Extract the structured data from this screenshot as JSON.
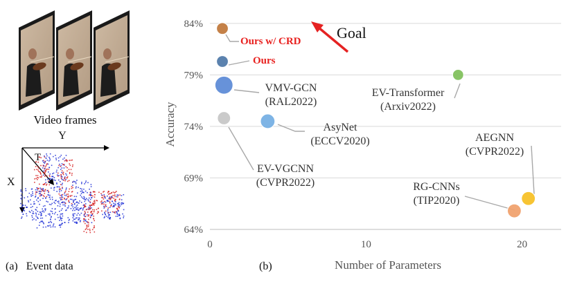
{
  "left_panel": {
    "video_frames_caption": "Video frames",
    "axis_y_label": "Y",
    "axis_t_label": "T",
    "axis_x_label": "X",
    "subfigure_a_caption": "(a)   Event data",
    "event_colors": {
      "positive": "#d62020",
      "negative": "#1f2fd6"
    }
  },
  "subfigure_b_caption": "(b)",
  "chart_data": {
    "type": "scatter",
    "title": "",
    "xlabel": "Number of Parameters",
    "ylabel": "Accuracy",
    "xlim": [
      0,
      22.5
    ],
    "ylim": [
      64,
      86
    ],
    "xticks": [
      0,
      10,
      20
    ],
    "yticks": [
      {
        "value": 64,
        "label": "64%"
      },
      {
        "value": 69,
        "label": "69%"
      },
      {
        "value": 74,
        "label": "74%"
      },
      {
        "value": 79,
        "label": "79%"
      },
      {
        "value": 84,
        "label": "84%"
      }
    ],
    "grid": "horizontal",
    "goal_label": "Goal",
    "points": [
      {
        "id": "ours-crd",
        "line1": "Ours w/ CRD",
        "line2": "",
        "x": 0.8,
        "y": 83.5,
        "size": 8.5,
        "color": "#c0773a",
        "label_color": "#e8201e",
        "bold": true
      },
      {
        "id": "ours",
        "line1": "Ours",
        "line2": "",
        "x": 0.8,
        "y": 80.3,
        "size": 8.5,
        "color": "#4f79a8",
        "label_color": "#e8201e",
        "bold": true
      },
      {
        "id": "vmv-gcn",
        "line1": "VMV-GCN",
        "line2": "(RAL2022)",
        "x": 0.9,
        "y": 78.0,
        "size": 13,
        "color": "#5b8ad6",
        "label_color": "#333333",
        "bold": false
      },
      {
        "id": "ev-vgcnn",
        "line1": "EV-VGCNN",
        "line2": "(CVPR2022)",
        "x": 0.9,
        "y": 74.8,
        "size": 9.5,
        "color": "#c6c6c6",
        "label_color": "#333333",
        "bold": false
      },
      {
        "id": "asynet",
        "line1": "AsyNet",
        "line2": "(ECCV2020)",
        "x": 3.7,
        "y": 74.5,
        "size": 10.5,
        "color": "#74aee3",
        "label_color": "#333333",
        "bold": false
      },
      {
        "id": "ev-transformer",
        "line1": "EV-Transformer",
        "line2": "(Arxiv2022)",
        "x": 15.9,
        "y": 79.0,
        "size": 8,
        "color": "#7fbf5a",
        "label_color": "#333333",
        "bold": false
      },
      {
        "id": "aegnn",
        "line1": "AEGNN",
        "line2": "(CVPR2022)",
        "x": 20.4,
        "y": 67.0,
        "size": 10,
        "color": "#f6bf24",
        "label_color": "#333333",
        "bold": false
      },
      {
        "id": "rg-cnns",
        "line1": "RG-CNNs",
        "line2": "(TIP2020)",
        "x": 19.5,
        "y": 65.8,
        "size": 10,
        "color": "#f0a06c",
        "label_color": "#333333",
        "bold": false
      }
    ]
  }
}
